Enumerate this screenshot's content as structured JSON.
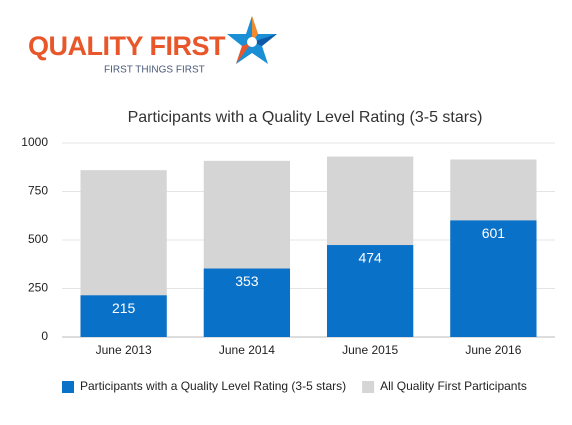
{
  "logo": {
    "name": "QUALITY FIRST",
    "tagline": "FIRST THINGS FIRST"
  },
  "chart_data": {
    "type": "bar",
    "barmode": "overlay",
    "title": "Participants with a Quality Level Rating (3-5 stars)",
    "categories": [
      "June 2013",
      "June 2014",
      "June 2015",
      "June 2016"
    ],
    "series": [
      {
        "name": "Participants with a Quality Level Rating (3-5 stars)",
        "color": "#0a71c8",
        "values": [
          215,
          353,
          474,
          601
        ],
        "show_labels": true
      },
      {
        "name": "All Quality First Participants",
        "color": "#d5d5d5",
        "values": [
          860,
          908,
          930,
          915
        ],
        "show_labels": false
      }
    ],
    "ylim": [
      0,
      1000
    ],
    "yticks": [
      0,
      250,
      500,
      750,
      1000
    ],
    "grid": true,
    "legend": "bottom"
  }
}
